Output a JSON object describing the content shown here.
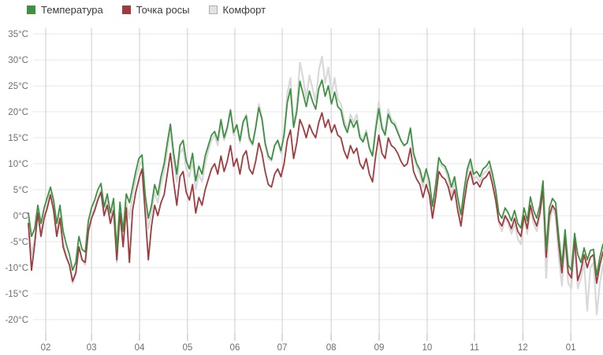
{
  "legend": [
    {
      "id": "temperature",
      "label": "Температура",
      "swatch_color": "#3f9142",
      "swatch_border": "#3f9142"
    },
    {
      "id": "dew-point",
      "label": "Точка росы",
      "swatch_color": "#9f3b3f",
      "swatch_border": "#9f3b3f"
    },
    {
      "id": "comfort",
      "label": "Комфорт",
      "swatch_color": "#e2e2e2",
      "swatch_border": "#aeaeae"
    }
  ],
  "chart_data": {
    "type": "line",
    "title": "",
    "xlabel": "",
    "ylabel": "°C",
    "grid": true,
    "legend_position": "top-left",
    "ylim": [
      -20,
      35
    ],
    "y_ticks": [
      35,
      30,
      25,
      20,
      15,
      10,
      5,
      0,
      -5,
      -10,
      -15,
      -20
    ],
    "y_tick_suffix": "°C",
    "x_tick_labels": [
      "02",
      "03",
      "04",
      "05",
      "06",
      "07",
      "08",
      "09",
      "10",
      "11",
      "12",
      "01"
    ],
    "x_tick_indices": [
      5.5,
      20,
      35.2,
      50.4,
      65.4,
      80.4,
      95.9,
      111.1,
      126.3,
      141.3,
      156.6,
      171.8
    ],
    "x_sample_interval_days": 2,
    "x_range_note": "one year, late January to late January, sampled every 2 days",
    "series": [
      {
        "name": "Температура",
        "color": "#3f9142",
        "width": 1.8,
        "values": [
          0.5,
          -4,
          -2.5,
          2,
          -1.5,
          1.5,
          3.5,
          5.5,
          3,
          -1.5,
          2,
          -3,
          -5.5,
          -7.5,
          -10.5,
          -9,
          -4,
          -6.5,
          -7,
          -1,
          1.5,
          3,
          5,
          6.2,
          1.7,
          4.2,
          0.5,
          3.3,
          -6.5,
          2.6,
          -3,
          4.2,
          2.5,
          5.5,
          8.5,
          11,
          11.7,
          4,
          -0.5,
          2,
          6,
          4,
          7.5,
          10,
          14,
          17.6,
          12,
          8,
          13.5,
          14.5,
          10.5,
          9,
          12,
          6.7,
          9.5,
          8,
          11.5,
          13.5,
          15.5,
          16.2,
          14.5,
          18.5,
          15,
          17,
          20.3,
          16,
          17.5,
          14.5,
          18,
          19.2,
          15,
          13.8,
          17,
          20.8,
          18.5,
          14,
          11.5,
          10.8,
          13.5,
          14.5,
          12.5,
          15.5,
          21.8,
          24.4,
          17,
          20,
          25.9,
          23.5,
          21,
          24,
          22,
          20.5,
          24.5,
          26.1,
          23,
          25,
          21.5,
          23.8,
          21,
          20.3,
          17.5,
          16,
          18.5,
          17,
          18.3,
          15,
          14.2,
          16,
          13,
          11.5,
          16.5,
          20.6,
          16.8,
          15.5,
          19.5,
          18,
          17.5,
          16,
          14.5,
          13.5,
          14,
          16.8,
          12,
          10,
          8.9,
          6.5,
          9,
          6.7,
          1.8,
          6,
          11.2,
          10,
          9.5,
          8,
          5.5,
          7.5,
          3.5,
          0.2,
          5,
          9,
          10.9,
          8,
          8.5,
          7.5,
          9,
          9.5,
          10.5,
          8,
          5,
          0.5,
          -0.5,
          1.5,
          0.5,
          -1,
          1,
          -1.5,
          -2.4,
          1.5,
          -1,
          3.6,
          1,
          -0.5,
          2,
          6.7,
          -6.5,
          1.5,
          3.3,
          2.5,
          -4,
          -9.5,
          -2.7,
          -9.5,
          -10.5,
          -3.4,
          -7.5,
          -9,
          -6.2,
          -8.5,
          -6.7,
          -6.5,
          -11.5,
          -8,
          -5.5
        ]
      },
      {
        "name": "Точка росы",
        "color": "#9f3b3f",
        "width": 1.8,
        "values": [
          -1.5,
          -10.5,
          -5.5,
          0.5,
          -4,
          -0.5,
          1.5,
          4,
          1,
          -4,
          -0.5,
          -6,
          -8,
          -9.5,
          -12.6,
          -11,
          -6,
          -8.5,
          -9,
          -3,
          -0.5,
          1,
          3,
          4.5,
          0,
          2,
          -1.5,
          1,
          -8.5,
          0.5,
          -6,
          1.5,
          -9,
          1,
          4.5,
          7,
          9,
          0.5,
          -8.5,
          -2,
          2,
          0,
          2.5,
          4,
          8,
          12,
          6.5,
          2,
          7.5,
          8.5,
          4.5,
          3,
          6,
          0.5,
          3.5,
          2,
          5,
          7,
          9,
          10,
          8,
          11.5,
          8.5,
          10.5,
          13.5,
          9.5,
          11,
          8,
          11.5,
          12.5,
          9,
          8,
          10.5,
          14,
          12,
          8.5,
          6,
          5.5,
          8,
          9,
          7.5,
          10,
          14.5,
          16.5,
          11,
          14,
          18.5,
          17,
          15,
          17.5,
          16,
          15,
          18,
          19.8,
          17,
          18.5,
          16,
          17.5,
          15.5,
          15,
          12.5,
          11,
          13.5,
          12,
          13,
          10,
          9,
          11,
          8,
          6.5,
          11.5,
          15.5,
          12,
          11,
          15,
          13.5,
          13,
          12,
          10.5,
          9.5,
          10,
          13,
          8.5,
          7,
          6,
          3.5,
          6,
          4,
          -0.5,
          3.5,
          8.5,
          7.5,
          7,
          5.5,
          3,
          5,
          1,
          -2,
          2.5,
          6.5,
          8.5,
          6,
          6.5,
          5.5,
          7,
          7.5,
          8.5,
          6,
          3,
          -1,
          -2,
          0,
          -1,
          -2.5,
          -0.5,
          -3,
          -4,
          0,
          -2.5,
          2,
          -0.5,
          -2,
          0.5,
          5,
          -8,
          0,
          2,
          1,
          -5.5,
          -11,
          -4,
          -11,
          -12,
          -4.5,
          -12.5,
          -10.5,
          -7.5,
          -10,
          -8,
          -7.5,
          -13,
          -9.5,
          -7
        ]
      },
      {
        "name": "Комфорт",
        "color": "#d9d9d9",
        "width": 2.2,
        "values": [
          -1,
          -7.5,
          -4.5,
          1,
          -3.5,
          0,
          2,
          4.5,
          1.5,
          -3.5,
          0.5,
          -5,
          -7.5,
          -9.5,
          -13,
          -11.5,
          -6,
          -8.5,
          -9.5,
          -3,
          0,
          1.5,
          3.5,
          5,
          0.5,
          3,
          -1,
          2,
          -9,
          1,
          -5.5,
          2.5,
          -0.5,
          4,
          7,
          9.5,
          10.5,
          2.5,
          -2.5,
          0.5,
          4.5,
          2.5,
          6,
          8.5,
          12.5,
          16.5,
          10.5,
          6.5,
          12,
          13,
          9,
          7.5,
          10.5,
          5,
          8,
          6.5,
          10,
          12.5,
          14.5,
          15.5,
          13.5,
          18,
          14.5,
          16.5,
          20.5,
          15.5,
          17.5,
          14,
          18,
          19.5,
          14.5,
          13.5,
          17,
          21.5,
          19,
          13.5,
          11,
          10.5,
          13.5,
          14.5,
          12,
          16,
          23.5,
          26.5,
          17.5,
          21,
          29.5,
          26.5,
          22.5,
          27,
          24.5,
          22,
          28,
          30.6,
          25.5,
          28.5,
          23.5,
          26.5,
          22.5,
          21.5,
          18.5,
          16.5,
          19.5,
          18,
          19.5,
          15.5,
          14.5,
          16.5,
          13,
          11.5,
          17.5,
          22,
          17.5,
          16,
          20.5,
          18.5,
          18,
          16.5,
          14.5,
          13.5,
          14,
          17,
          11.5,
          9.5,
          8,
          5.5,
          8.5,
          5.5,
          0,
          5,
          10.5,
          9.5,
          9,
          7,
          4,
          6.5,
          2,
          -1.5,
          3.5,
          8,
          10,
          7,
          7.5,
          6.5,
          8,
          8.5,
          9.5,
          7,
          3.5,
          -1.5,
          -3,
          -0.5,
          -1.5,
          -3.5,
          -1.5,
          -4.5,
          -5.5,
          -0.5,
          -3.5,
          1.5,
          -1.5,
          -3,
          0,
          4.5,
          -12,
          -1.5,
          1.5,
          0,
          -8,
          -13.5,
          -5,
          -13,
          -14,
          -5.5,
          -14,
          -12,
          -9,
          -18.3,
          -10,
          -9,
          -19,
          -13,
          -9.5
        ]
      }
    ]
  },
  "style_colors": {
    "h_gridline": "#e7e7e7",
    "v_gridline": "#cccccc",
    "tick_stub": "#b8b8b8",
    "axis_text": "#6e6e6e",
    "background": "#ffffff"
  }
}
